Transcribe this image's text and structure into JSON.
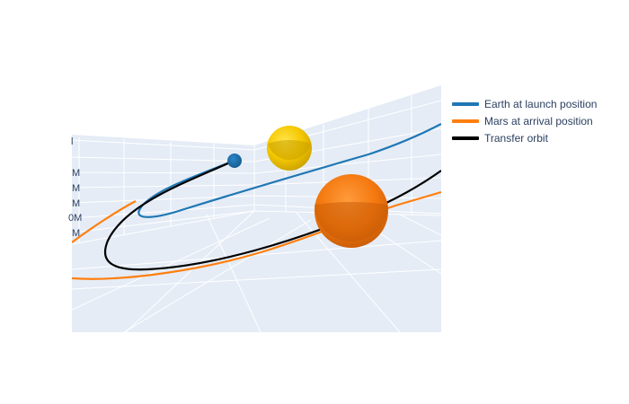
{
  "chart_data": {
    "type": "scatter3d",
    "title": "",
    "scene_background": "#e5ecf6",
    "grid": true,
    "legend_position": "right",
    "axis_tick_label_fragments": [
      "l",
      "M",
      "M",
      "M",
      "0M",
      "M"
    ],
    "series": [
      {
        "name": "Earth at launch position",
        "color": "#1f77b4",
        "type": "orbit+body",
        "body_color": "#1f6fa8",
        "orbit_shape": "ellipse passing near Sun, extends up-right beyond scene edge"
      },
      {
        "name": "Mars at arrival position",
        "color": "#ff7f0e",
        "type": "orbit+body",
        "body_color": "#ff7f0e",
        "orbit_shape": "long arc from left edge toward lower right"
      },
      {
        "name": "Transfer orbit",
        "color": "#000000",
        "type": "orbit",
        "orbit_shape": "arc from Earth body sweeping left and down to right edge"
      }
    ],
    "sun": {
      "color": "#ffd700"
    }
  },
  "legend": [
    {
      "label": "Earth at launch position",
      "color": "#1f77b4"
    },
    {
      "label": "Mars at arrival position",
      "color": "#ff7f0e"
    },
    {
      "label": "Transfer orbit",
      "color": "#000000"
    }
  ]
}
